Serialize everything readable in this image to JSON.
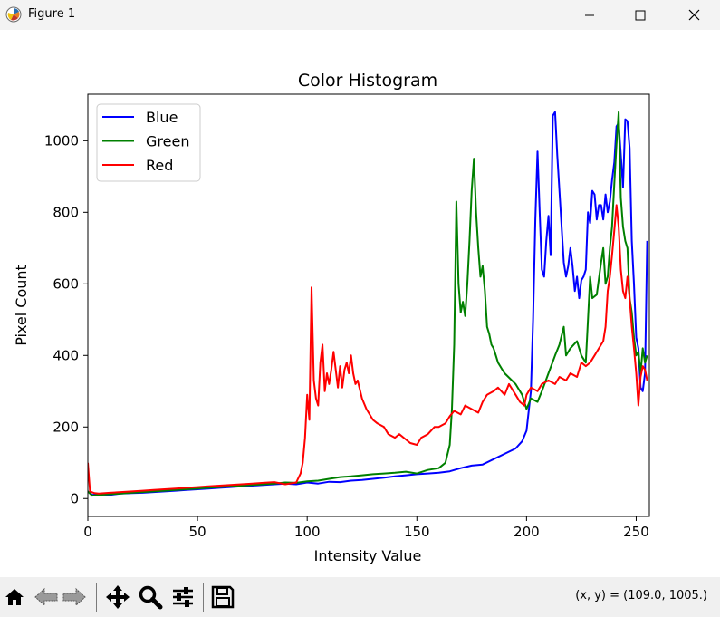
{
  "window": {
    "title": "Figure 1",
    "icon": "matplotlib-logo-icon",
    "controls": [
      "minimize-icon",
      "maximize-icon",
      "close-icon"
    ]
  },
  "toolbar": {
    "buttons": [
      "home-icon",
      "back-arrow-icon",
      "forward-arrow-icon",
      "pan-icon",
      "zoom-icon",
      "configure-subplots-icon",
      "save-icon"
    ],
    "coords_text": "(x, y) = (109.0, 1005.)"
  },
  "chart_data": {
    "type": "line",
    "title": "Color Histogram",
    "xlabel": "Intensity Value",
    "ylabel": "Pixel Count",
    "xlim": [
      0,
      256
    ],
    "ylim": [
      -50,
      1130
    ],
    "xticks": [
      0,
      50,
      100,
      150,
      200,
      250
    ],
    "yticks": [
      0,
      200,
      400,
      600,
      800,
      1000
    ],
    "grid": false,
    "legend": "top-left",
    "series": [
      {
        "name": "Blue",
        "color": "#0000ff",
        "points": [
          [
            0,
            20
          ],
          [
            2,
            10
          ],
          [
            5,
            12
          ],
          [
            10,
            10
          ],
          [
            15,
            14
          ],
          [
            20,
            15
          ],
          [
            25,
            16
          ],
          [
            30,
            18
          ],
          [
            35,
            20
          ],
          [
            40,
            22
          ],
          [
            45,
            24
          ],
          [
            50,
            26
          ],
          [
            55,
            28
          ],
          [
            60,
            30
          ],
          [
            65,
            32
          ],
          [
            70,
            34
          ],
          [
            75,
            36
          ],
          [
            80,
            38
          ],
          [
            85,
            40
          ],
          [
            90,
            42
          ],
          [
            95,
            40
          ],
          [
            100,
            45
          ],
          [
            105,
            42
          ],
          [
            110,
            47
          ],
          [
            115,
            46
          ],
          [
            120,
            50
          ],
          [
            125,
            52
          ],
          [
            130,
            55
          ],
          [
            135,
            58
          ],
          [
            140,
            62
          ],
          [
            145,
            65
          ],
          [
            150,
            68
          ],
          [
            155,
            70
          ],
          [
            160,
            72
          ],
          [
            165,
            76
          ],
          [
            170,
            85
          ],
          [
            175,
            92
          ],
          [
            180,
            95
          ],
          [
            185,
            110
          ],
          [
            190,
            125
          ],
          [
            195,
            140
          ],
          [
            198,
            160
          ],
          [
            200,
            190
          ],
          [
            202,
            300
          ],
          [
            203,
            500
          ],
          [
            204,
            780
          ],
          [
            205,
            970
          ],
          [
            206,
            800
          ],
          [
            207,
            640
          ],
          [
            208,
            620
          ],
          [
            209,
            720
          ],
          [
            210,
            790
          ],
          [
            211,
            680
          ],
          [
            212,
            1070
          ],
          [
            213,
            1080
          ],
          [
            214,
            960
          ],
          [
            215,
            860
          ],
          [
            216,
            760
          ],
          [
            217,
            660
          ],
          [
            218,
            620
          ],
          [
            219,
            650
          ],
          [
            220,
            700
          ],
          [
            221,
            650
          ],
          [
            222,
            580
          ],
          [
            223,
            620
          ],
          [
            224,
            560
          ],
          [
            225,
            610
          ],
          [
            226,
            620
          ],
          [
            227,
            640
          ],
          [
            228,
            800
          ],
          [
            229,
            770
          ],
          [
            230,
            860
          ],
          [
            231,
            850
          ],
          [
            232,
            780
          ],
          [
            233,
            820
          ],
          [
            234,
            820
          ],
          [
            235,
            780
          ],
          [
            236,
            850
          ],
          [
            237,
            800
          ],
          [
            238,
            830
          ],
          [
            239,
            890
          ],
          [
            240,
            940
          ],
          [
            241,
            1040
          ],
          [
            242,
            1050
          ],
          [
            243,
            960
          ],
          [
            244,
            870
          ],
          [
            245,
            1060
          ],
          [
            246,
            1055
          ],
          [
            247,
            980
          ],
          [
            248,
            720
          ],
          [
            249,
            600
          ],
          [
            250,
            450
          ],
          [
            251,
            420
          ],
          [
            252,
            310
          ],
          [
            253,
            300
          ],
          [
            254,
            350
          ],
          [
            255,
            720
          ]
        ]
      },
      {
        "name": "Green",
        "color": "#008000",
        "points": [
          [
            0,
            20
          ],
          [
            2,
            8
          ],
          [
            5,
            10
          ],
          [
            10,
            12
          ],
          [
            15,
            14
          ],
          [
            20,
            16
          ],
          [
            25,
            18
          ],
          [
            30,
            20
          ],
          [
            35,
            22
          ],
          [
            40,
            24
          ],
          [
            45,
            26
          ],
          [
            50,
            28
          ],
          [
            55,
            30
          ],
          [
            60,
            32
          ],
          [
            65,
            34
          ],
          [
            70,
            36
          ],
          [
            75,
            38
          ],
          [
            80,
            40
          ],
          [
            85,
            42
          ],
          [
            90,
            45
          ],
          [
            95,
            44
          ],
          [
            100,
            48
          ],
          [
            105,
            50
          ],
          [
            110,
            55
          ],
          [
            115,
            60
          ],
          [
            120,
            62
          ],
          [
            125,
            65
          ],
          [
            130,
            68
          ],
          [
            135,
            70
          ],
          [
            140,
            72
          ],
          [
            145,
            75
          ],
          [
            150,
            70
          ],
          [
            155,
            80
          ],
          [
            160,
            85
          ],
          [
            163,
            100
          ],
          [
            165,
            150
          ],
          [
            166,
            250
          ],
          [
            167,
            430
          ],
          [
            168,
            830
          ],
          [
            169,
            600
          ],
          [
            170,
            520
          ],
          [
            171,
            550
          ],
          [
            172,
            510
          ],
          [
            173,
            600
          ],
          [
            174,
            720
          ],
          [
            175,
            860
          ],
          [
            176,
            950
          ],
          [
            177,
            800
          ],
          [
            178,
            700
          ],
          [
            179,
            620
          ],
          [
            180,
            650
          ],
          [
            181,
            580
          ],
          [
            182,
            480
          ],
          [
            183,
            460
          ],
          [
            184,
            430
          ],
          [
            185,
            420
          ],
          [
            186,
            400
          ],
          [
            187,
            380
          ],
          [
            188,
            370
          ],
          [
            189,
            360
          ],
          [
            190,
            350
          ],
          [
            195,
            320
          ],
          [
            198,
            290
          ],
          [
            200,
            250
          ],
          [
            202,
            280
          ],
          [
            205,
            270
          ],
          [
            207,
            300
          ],
          [
            210,
            350
          ],
          [
            213,
            400
          ],
          [
            215,
            430
          ],
          [
            217,
            480
          ],
          [
            218,
            400
          ],
          [
            220,
            420
          ],
          [
            223,
            440
          ],
          [
            225,
            400
          ],
          [
            227,
            380
          ],
          [
            228,
            500
          ],
          [
            229,
            620
          ],
          [
            230,
            560
          ],
          [
            232,
            570
          ],
          [
            234,
            660
          ],
          [
            235,
            700
          ],
          [
            236,
            600
          ],
          [
            237,
            620
          ],
          [
            238,
            700
          ],
          [
            239,
            760
          ],
          [
            240,
            880
          ],
          [
            241,
            990
          ],
          [
            242,
            1080
          ],
          [
            243,
            840
          ],
          [
            244,
            760
          ],
          [
            245,
            720
          ],
          [
            246,
            700
          ],
          [
            247,
            560
          ],
          [
            248,
            520
          ],
          [
            249,
            450
          ],
          [
            250,
            400
          ],
          [
            251,
            410
          ],
          [
            252,
            350
          ],
          [
            253,
            420
          ],
          [
            254,
            380
          ],
          [
            255,
            400
          ]
        ]
      },
      {
        "name": "Red",
        "color": "#ff0000",
        "points": [
          [
            0,
            100
          ],
          [
            1,
            20
          ],
          [
            3,
            15
          ],
          [
            5,
            14
          ],
          [
            10,
            16
          ],
          [
            15,
            18
          ],
          [
            20,
            20
          ],
          [
            25,
            22
          ],
          [
            30,
            24
          ],
          [
            35,
            26
          ],
          [
            40,
            28
          ],
          [
            45,
            30
          ],
          [
            50,
            32
          ],
          [
            55,
            34
          ],
          [
            60,
            36
          ],
          [
            65,
            38
          ],
          [
            70,
            40
          ],
          [
            75,
            42
          ],
          [
            80,
            44
          ],
          [
            85,
            46
          ],
          [
            90,
            40
          ],
          [
            95,
            45
          ],
          [
            97,
            70
          ],
          [
            98,
            100
          ],
          [
            99,
            170
          ],
          [
            100,
            290
          ],
          [
            101,
            220
          ],
          [
            102,
            590
          ],
          [
            103,
            330
          ],
          [
            104,
            280
          ],
          [
            105,
            260
          ],
          [
            106,
            380
          ],
          [
            107,
            430
          ],
          [
            108,
            300
          ],
          [
            109,
            350
          ],
          [
            110,
            320
          ],
          [
            111,
            360
          ],
          [
            112,
            410
          ],
          [
            113,
            360
          ],
          [
            114,
            310
          ],
          [
            115,
            370
          ],
          [
            116,
            310
          ],
          [
            117,
            360
          ],
          [
            118,
            380
          ],
          [
            119,
            350
          ],
          [
            120,
            400
          ],
          [
            121,
            350
          ],
          [
            122,
            320
          ],
          [
            123,
            330
          ],
          [
            125,
            280
          ],
          [
            127,
            250
          ],
          [
            130,
            220
          ],
          [
            132,
            210
          ],
          [
            135,
            200
          ],
          [
            137,
            180
          ],
          [
            140,
            170
          ],
          [
            142,
            180
          ],
          [
            145,
            165
          ],
          [
            147,
            155
          ],
          [
            150,
            150
          ],
          [
            152,
            170
          ],
          [
            155,
            180
          ],
          [
            158,
            200
          ],
          [
            160,
            200
          ],
          [
            163,
            210
          ],
          [
            165,
            230
          ],
          [
            167,
            245
          ],
          [
            170,
            235
          ],
          [
            172,
            260
          ],
          [
            175,
            250
          ],
          [
            178,
            240
          ],
          [
            180,
            270
          ],
          [
            182,
            290
          ],
          [
            185,
            300
          ],
          [
            187,
            310
          ],
          [
            190,
            290
          ],
          [
            192,
            320
          ],
          [
            195,
            290
          ],
          [
            197,
            270
          ],
          [
            199,
            260
          ],
          [
            200,
            290
          ],
          [
            202,
            310
          ],
          [
            205,
            300
          ],
          [
            207,
            320
          ],
          [
            210,
            330
          ],
          [
            213,
            320
          ],
          [
            215,
            340
          ],
          [
            218,
            330
          ],
          [
            220,
            350
          ],
          [
            223,
            340
          ],
          [
            225,
            380
          ],
          [
            227,
            370
          ],
          [
            229,
            380
          ],
          [
            231,
            400
          ],
          [
            233,
            420
          ],
          [
            235,
            440
          ],
          [
            236,
            480
          ],
          [
            237,
            580
          ],
          [
            238,
            620
          ],
          [
            239,
            680
          ],
          [
            240,
            750
          ],
          [
            241,
            820
          ],
          [
            242,
            760
          ],
          [
            243,
            640
          ],
          [
            244,
            580
          ],
          [
            245,
            560
          ],
          [
            246,
            620
          ],
          [
            247,
            560
          ],
          [
            248,
            480
          ],
          [
            249,
            420
          ],
          [
            250,
            350
          ],
          [
            251,
            260
          ],
          [
            252,
            340
          ],
          [
            253,
            370
          ],
          [
            254,
            360
          ],
          [
            255,
            330
          ]
        ]
      }
    ]
  }
}
